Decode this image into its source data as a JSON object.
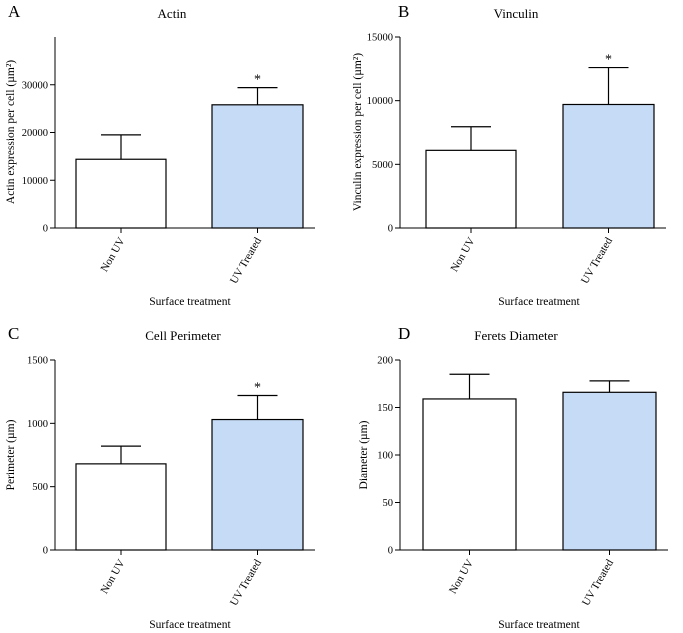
{
  "colors": {
    "uv": "#c6dbf5",
    "non_uv": "#ffffff",
    "stroke": "#000000"
  },
  "chart_data": [
    {
      "type": "bar",
      "panel": "A",
      "title": "Actin",
      "ylabel": "Actin expression per cell (µm²)",
      "xlabel": "Surface treatment",
      "categories": [
        "Non UV",
        "UV Treated"
      ],
      "values": [
        14400,
        25800
      ],
      "errors": [
        5100,
        3600
      ],
      "significance": [
        "",
        "*"
      ],
      "ylim": [
        0,
        40000
      ],
      "yticks": [
        0,
        10000,
        20000,
        30000
      ],
      "ytick_labels": [
        "0",
        "10000",
        "20000",
        "30000"
      ]
    },
    {
      "type": "bar",
      "panel": "B",
      "title": "Vinculin",
      "ylabel": "Vinculin expression per cell (µm²)",
      "xlabel": "Surface treatment",
      "categories": [
        "Non UV",
        "UV Treated"
      ],
      "values": [
        6100,
        9700
      ],
      "errors": [
        1850,
        2900
      ],
      "significance": [
        "",
        "*"
      ],
      "ylim": [
        0,
        15000
      ],
      "yticks": [
        0,
        5000,
        10000,
        15000
      ],
      "ytick_labels": [
        "0",
        "5000",
        "10000",
        "15000"
      ]
    },
    {
      "type": "bar",
      "panel": "C",
      "title": "Cell Perimeter",
      "ylabel": "Perimeter (µm)",
      "xlabel": "Surface treatment",
      "categories": [
        "Non UV",
        "UV Treated"
      ],
      "values": [
        680,
        1030
      ],
      "errors": [
        140,
        190
      ],
      "significance": [
        "",
        "*"
      ],
      "ylim": [
        0,
        1500
      ],
      "yticks": [
        0,
        500,
        1000,
        1500
      ],
      "ytick_labels": [
        "0",
        "500",
        "1000",
        "1500"
      ]
    },
    {
      "type": "bar",
      "panel": "D",
      "title": "Ferets Diameter",
      "ylabel": "Diameter (µm)",
      "xlabel": "Surface treatment",
      "categories": [
        "Non UV",
        "UV Treated"
      ],
      "values": [
        159,
        166
      ],
      "errors": [
        26,
        12
      ],
      "significance": [
        "",
        ""
      ],
      "ylim": [
        0,
        200
      ],
      "yticks": [
        0,
        50,
        100,
        150,
        200
      ],
      "ytick_labels": [
        "0",
        "50",
        "100",
        "150",
        "200"
      ]
    }
  ]
}
